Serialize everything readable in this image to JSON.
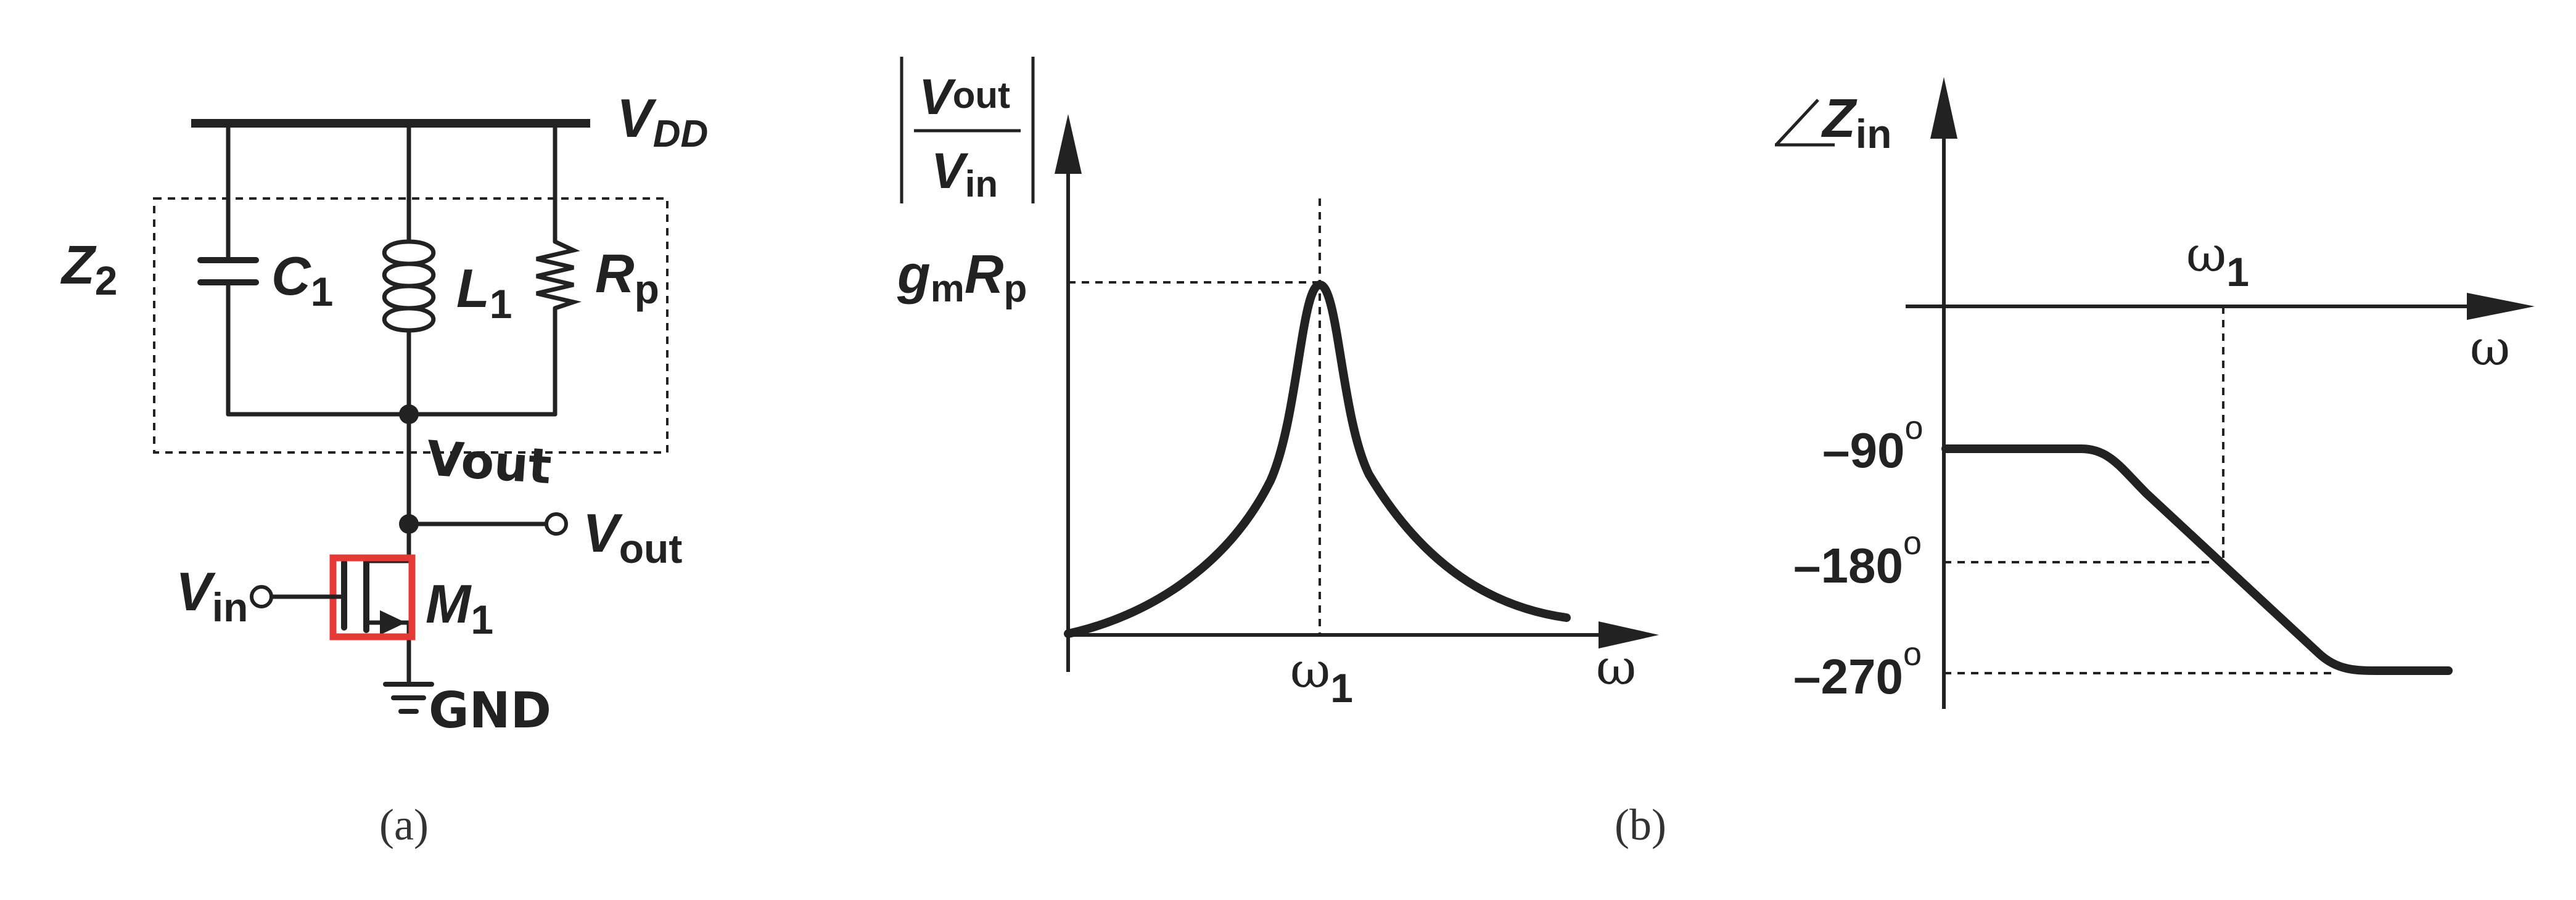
{
  "circuit": {
    "vdd_label": "V",
    "vdd_sub": "DD",
    "z2_label": "Z",
    "z2_sub": "2",
    "c1_label": "C",
    "c1_sub": "1",
    "l1_label": "L",
    "l1_sub": "1",
    "rp_label": "R",
    "rp_sub": "p",
    "vout_handwritten": "Vout",
    "vout_label": "V",
    "vout_sub": "out",
    "vin_label": "V",
    "vin_sub": "in",
    "m1_label": "M",
    "m1_sub": "1",
    "gnd_handwritten": "GND",
    "highlight_color": "#e53935",
    "caption": "(a)"
  },
  "magnitude_plot": {
    "ylabel_num_v": "V",
    "ylabel_num_sub": "out",
    "ylabel_den_v": "V",
    "ylabel_den_sub": "in",
    "peak_label_g": "g",
    "peak_label_g_sub": "m",
    "peak_label_r": "R",
    "peak_label_r_sub": "p",
    "center_label": "ω",
    "center_sub": "1",
    "xlabel": "ω"
  },
  "phase_plot": {
    "ylabel_z": "Z",
    "ylabel_sub": "in",
    "center_label": "ω",
    "center_sub": "1",
    "xlabel": "ω",
    "ticks": [
      "–90",
      "–180",
      "–270"
    ],
    "degree": "o",
    "levels_deg": [
      -90,
      -180,
      -270
    ]
  },
  "caption_b": "(b)"
}
